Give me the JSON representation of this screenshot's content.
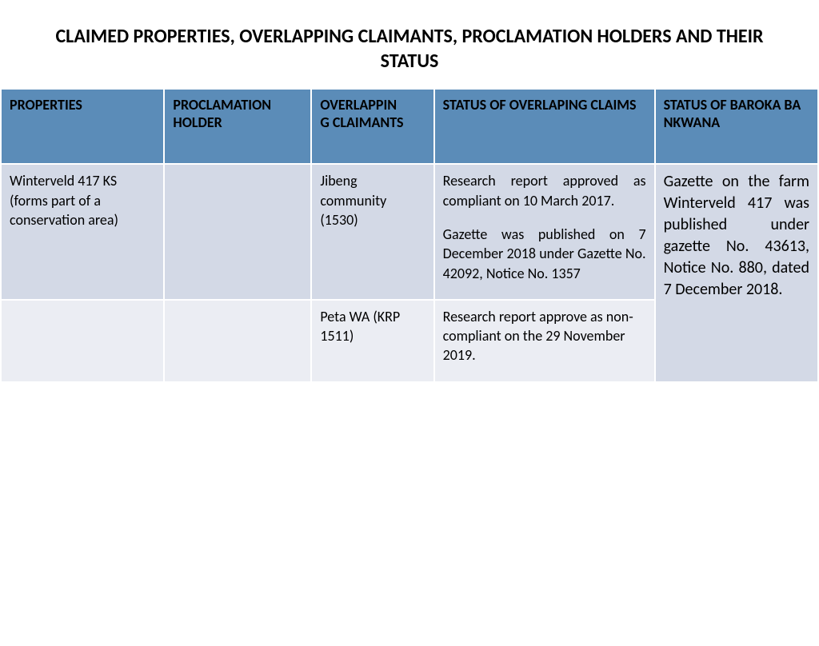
{
  "title": "CLAIMED PROPERTIES, OVERLAPPING CLAIMANTS, PROCLAMATION HOLDERS AND THEIR STATUS",
  "table": {
    "columns": [
      "PROPERTIES",
      "PROCLAMATION HOLDER",
      "OVERLAPPING CLAIMANTS",
      "STATUS OF OVERLAPING CLAIMS",
      "STATUS OF BAROKA BA NKWANA"
    ],
    "rows": [
      {
        "properties": "Winterveld 417 KS (forms part of a conservation area)",
        "holder": "",
        "claimants": "Jibeng community (1530)",
        "overlap_p1": "Research report approved as compliant on 10 March 2017.",
        "overlap_p2": "Gazette was published on 7 December 2018 under Gazette No. 42092, Notice No. 1357",
        "status_baroka": "Gazette on the farm Winterveld 417 was published under gazette No. 43613, Notice No. 880, dated 7 December 2018."
      },
      {
        "properties": "",
        "holder": "",
        "claimants": "Peta WA (KRP 1511)",
        "overlap_p1": "Research report approve as non-compliant on the 29 November 2019.",
        "overlap_p2": ""
      }
    ]
  },
  "style": {
    "header_bg": "#5b8cb8",
    "row_light_bg": "#d3d9e6",
    "row_dark_bg": "#ebedf3",
    "title_fontsize": 24,
    "header_fontsize": 18,
    "cell_fontsize": 18,
    "status_fontsize": 20,
    "font_family": "Calibri",
    "col_widths_pct": [
      20,
      18,
      15,
      27,
      20
    ],
    "border_color": "#ffffff"
  }
}
